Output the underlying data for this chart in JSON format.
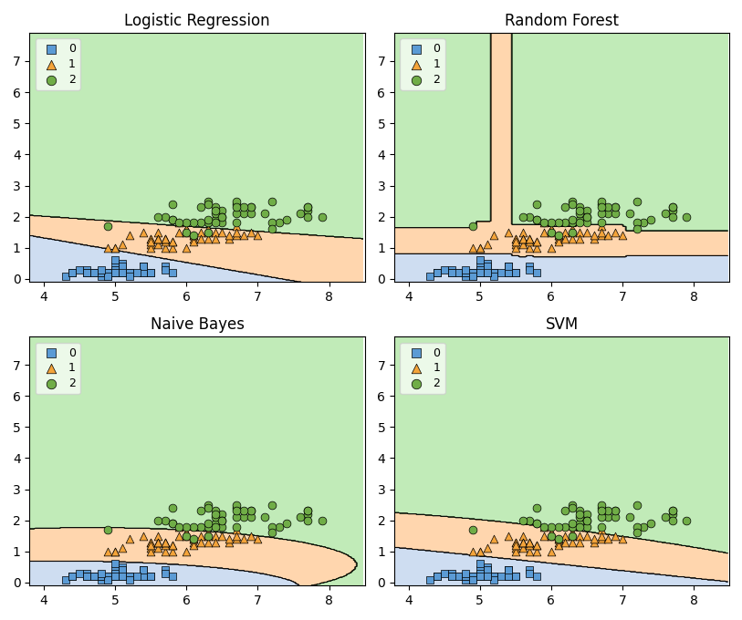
{
  "titles": [
    "Logistic Regression",
    "Random Forest",
    "Naive Bayes",
    "SVM"
  ],
  "class_colors": [
    "#5b9bd5",
    "#f4a43a",
    "#70ad47"
  ],
  "region_colors": [
    "#aec7e8",
    "#ffbb78",
    "#98df8a"
  ],
  "class_markers": [
    "s",
    "^",
    "o"
  ],
  "class_labels": [
    "0",
    "1",
    "2"
  ],
  "xlim": [
    3.8,
    8.5
  ],
  "ylim": [
    -0.1,
    7.9
  ],
  "xticks": [
    4,
    5,
    6,
    7,
    8
  ],
  "yticks": [
    0,
    1,
    2,
    3,
    4,
    5,
    6,
    7
  ],
  "marker_size": 40,
  "legend_loc": "upper left",
  "figsize": [
    8.13,
    6.8
  ],
  "dpi": 100
}
